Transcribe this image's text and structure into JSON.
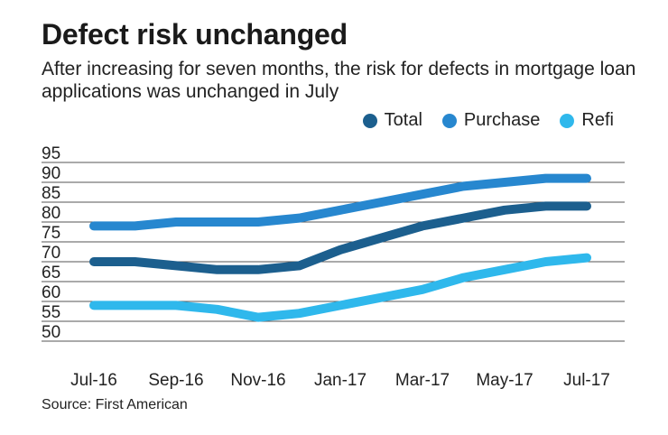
{
  "title": "Defect risk unchanged",
  "subtitle": "After increasing for seven months, the risk for defects in mortgage loan applications was unchanged in July",
  "source": "Source: First American",
  "colors": {
    "Total": "#1c5f8e",
    "Purchase": "#2787cf",
    "Refi": "#2fb8ec",
    "grid": "#555555"
  },
  "chart_data": {
    "type": "line",
    "title": "Defect risk unchanged",
    "xlabel": "",
    "ylabel": "",
    "ylim": [
      50,
      95
    ],
    "y_ticks": [
      95,
      90,
      85,
      80,
      75,
      70,
      65,
      60,
      55,
      50
    ],
    "x_tick_labels": [
      "Jul-16",
      "Sep-16",
      "Nov-16",
      "Jan-17",
      "Mar-17",
      "May-17",
      "Jul-17"
    ],
    "categories": [
      "Jul-16",
      "Aug-16",
      "Sep-16",
      "Oct-16",
      "Nov-16",
      "Dec-16",
      "Jan-17",
      "Feb-17",
      "Mar-17",
      "Apr-17",
      "May-17",
      "Jun-17",
      "Jul-17"
    ],
    "legend_position": "top-right",
    "grid": true,
    "series": [
      {
        "name": "Total",
        "values": [
          70,
          70,
          69,
          68,
          68,
          69,
          73,
          76,
          79,
          81,
          83,
          84,
          84
        ]
      },
      {
        "name": "Purchase",
        "values": [
          79,
          79,
          80,
          80,
          80,
          81,
          83,
          85,
          87,
          89,
          90,
          91,
          91
        ]
      },
      {
        "name": "Refi",
        "values": [
          59,
          59,
          59,
          58,
          56,
          57,
          59,
          61,
          63,
          66,
          68,
          70,
          71
        ]
      }
    ]
  }
}
